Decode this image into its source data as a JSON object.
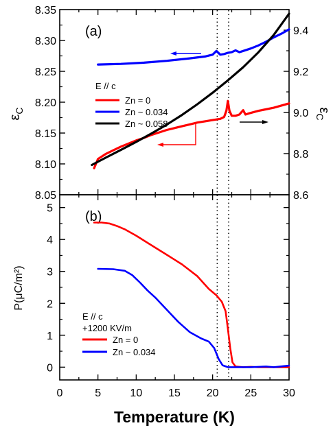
{
  "chart_data": [
    {
      "id": "a",
      "type": "line",
      "panel_label": "(a)",
      "ylabel": "ε",
      "ylabel_sub": "C",
      "ylabel_right": "ε",
      "ylabel_right_sub": "C",
      "xlim": [
        0,
        30
      ],
      "ylim": [
        8.05,
        8.35
      ],
      "ylim_right": [
        8.6,
        9.5
      ],
      "yticks": [
        "8.05",
        "8.10",
        "8.15",
        "8.20",
        "8.25",
        "8.30",
        "8.35"
      ],
      "yticks_right": [
        "8.6",
        "8.8",
        "9.0",
        "9.2",
        "9.4"
      ],
      "legend_title": "E // c",
      "series": [
        {
          "name": "Zn = 0",
          "color": "#ff0000",
          "axis": "left",
          "x": [
            4.5,
            5.0,
            6.0,
            7.0,
            8.0,
            9.0,
            10.0,
            11.0,
            12.0,
            13.0,
            14.0,
            15.0,
            16.0,
            17.0,
            18.0,
            19.0,
            20.0,
            21.0,
            21.5,
            21.8,
            22.0,
            22.2,
            22.5,
            23.0,
            23.5,
            24.0,
            24.3,
            24.8,
            26.0,
            28.0,
            30.0
          ],
          "y": [
            8.093,
            8.108,
            8.116,
            8.122,
            8.128,
            8.133,
            8.138,
            8.142,
            8.147,
            8.151,
            8.155,
            8.158,
            8.161,
            8.164,
            8.167,
            8.169,
            8.171,
            8.173,
            8.176,
            8.186,
            8.202,
            8.186,
            8.178,
            8.178,
            8.18,
            8.187,
            8.18,
            8.182,
            8.186,
            8.191,
            8.198
          ]
        },
        {
          "name": "Zn ~ 0.034",
          "color": "#0000ff",
          "axis": "left",
          "x": [
            5.0,
            8.0,
            11.0,
            14.0,
            17.0,
            19.0,
            20.0,
            20.5,
            21.0,
            21.5,
            22.0,
            22.5,
            23.0,
            23.5,
            24.0,
            25.0,
            26.0,
            27.0,
            28.0,
            29.0,
            30.0
          ],
          "y": [
            8.261,
            8.262,
            8.264,
            8.267,
            8.271,
            8.274,
            8.277,
            8.283,
            8.277,
            8.278,
            8.28,
            8.281,
            8.284,
            8.281,
            8.283,
            8.287,
            8.292,
            8.298,
            8.305,
            8.311,
            8.318
          ]
        },
        {
          "name": "Zn ~ 0.058",
          "color": "#000000",
          "axis": "right",
          "x": [
            4.2,
            6.0,
            8.0,
            10.0,
            12.0,
            14.0,
            16.0,
            18.0,
            20.0,
            22.0,
            24.0,
            26.0,
            28.0,
            30.0
          ],
          "y": [
            8.745,
            8.78,
            8.818,
            8.857,
            8.898,
            8.941,
            8.988,
            9.04,
            9.096,
            9.156,
            9.22,
            9.293,
            9.377,
            9.48
          ]
        }
      ],
      "legend": [
        {
          "label": "Zn = 0",
          "color": "#ff0000"
        },
        {
          "label": "Zn ~ 0.034",
          "color": "#0000ff"
        },
        {
          "label": "Zn ~ 0.058",
          "color": "#000000"
        }
      ]
    },
    {
      "id": "b",
      "type": "line",
      "panel_label": "(b)",
      "ylabel": "P(μC/m²)",
      "xlabel": "Temperature (K)",
      "xlim": [
        0,
        30
      ],
      "ylim": [
        -0.4,
        5.4
      ],
      "xticks": [
        "0",
        "5",
        "10",
        "15",
        "20",
        "25",
        "30"
      ],
      "yticks": [
        "0",
        "1",
        "2",
        "3",
        "4",
        "5"
      ],
      "legend_title": "E // c",
      "legend_subtitle": "+1200 KV/m",
      "series": [
        {
          "name": "Zn = 0",
          "color": "#ff0000",
          "x": [
            4.5,
            5.5,
            6.5,
            7.5,
            8.5,
            10.0,
            12.0,
            14.0,
            16.0,
            18.0,
            19.5,
            20.5,
            21.2,
            21.7,
            22.0,
            22.3,
            22.6,
            23.0,
            24.0,
            25.0,
            26.0,
            28.0,
            30.0
          ],
          "y": [
            4.53,
            4.53,
            4.5,
            4.42,
            4.32,
            4.12,
            3.82,
            3.52,
            3.22,
            2.85,
            2.45,
            2.25,
            2.05,
            1.75,
            1.2,
            0.6,
            0.15,
            0.02,
            0.0,
            0.01,
            0.0,
            0.0,
            0.0
          ]
        },
        {
          "name": "Zn ~ 0.034",
          "color": "#0000ff",
          "x": [
            5.0,
            7.0,
            8.5,
            9.5,
            10.5,
            11.5,
            12.5,
            14.0,
            15.5,
            17.0,
            18.5,
            19.5,
            20.2,
            20.8,
            21.3,
            22.0,
            23.0,
            25.0,
            27.0,
            28.0,
            30.0
          ],
          "y": [
            3.08,
            3.07,
            3.02,
            2.88,
            2.65,
            2.4,
            2.18,
            1.8,
            1.42,
            1.1,
            0.9,
            0.8,
            0.6,
            0.25,
            0.06,
            0.0,
            0.0,
            0.0,
            0.02,
            0.0,
            0.05
          ]
        }
      ],
      "legend": [
        {
          "label": "Zn = 0",
          "color": "#ff0000"
        },
        {
          "label": "Zn ~ 0.034",
          "color": "#0000ff"
        }
      ]
    }
  ],
  "shared": {
    "dotted_lines_x": [
      20.6,
      22.1
    ],
    "xlabel": "Temperature (K)"
  }
}
